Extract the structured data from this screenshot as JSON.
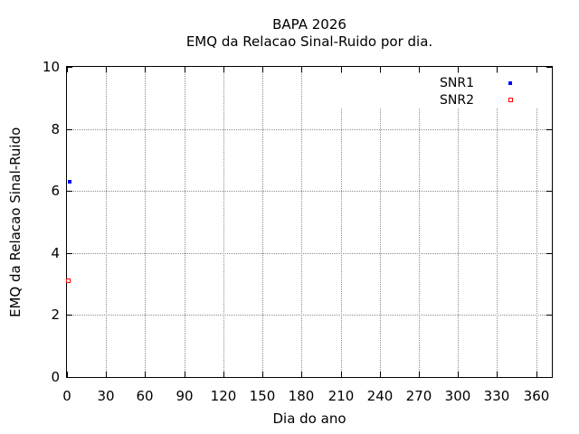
{
  "page": {
    "background": "#ffffff",
    "text_color": "#000000"
  },
  "chart_data": {
    "type": "scatter",
    "title": "BAPA 2026",
    "subtitle": "EMQ da Relacao Sinal-Ruido por dia.",
    "xlabel": "Dia do ano",
    "ylabel": "EMQ da Relacao Sinal-Ruido",
    "xlim": [
      0,
      372
    ],
    "ylim": [
      0,
      10
    ],
    "xticks": [
      0,
      30,
      60,
      90,
      120,
      150,
      180,
      210,
      240,
      270,
      300,
      330,
      360
    ],
    "yticks": [
      0,
      2,
      4,
      6,
      8,
      10
    ],
    "grid": true,
    "grid_style": "dotted",
    "grid_color": "#8c8c8c",
    "axis_color": "#000000",
    "legend_position": "top-right-inside",
    "series": [
      {
        "name": "SNR1",
        "color": "#0000ff",
        "marker": "filled-square",
        "points": [
          {
            "x": 2,
            "y": 6.3
          }
        ]
      },
      {
        "name": "SNR2",
        "color": "#ff0000",
        "marker": "open-square",
        "points": [
          {
            "x": 1,
            "y": 3.1
          }
        ]
      }
    ]
  }
}
